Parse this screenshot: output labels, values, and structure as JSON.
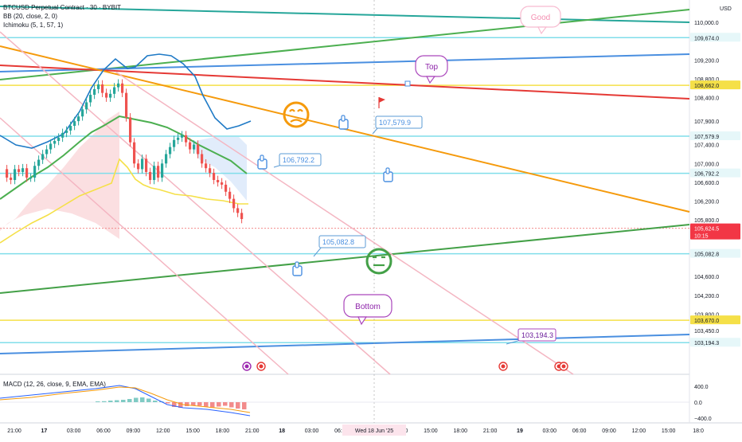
{
  "header": {
    "title": "BTCUSD Perpetual Contract · 30 · BYBIT",
    "indicators": [
      "BB (20, close, 2, 0)",
      "Ichimoku (5, 1, 57, 1)"
    ],
    "currency": "USD"
  },
  "macd_legend": "MACD (12, 26, close, 9, EMA, EMA)",
  "chart_data": [
    {
      "type": "line",
      "title": "BTCUSD Perpetual Contract · 30 · BYBIT",
      "y_unit": "USD",
      "ylim": [
        102770,
        111050
      ],
      "y_ticks": [
        110000,
        109200,
        108800,
        108400,
        107900,
        107400,
        107000,
        106600,
        106200,
        105800,
        104600,
        104200,
        103800,
        103450
      ],
      "x_ticks": [
        "21:00",
        "17",
        "03:00",
        "06:00",
        "09:00",
        "12:00",
        "15:00",
        "18:00",
        "21:00",
        "18",
        "03:00",
        "06:00",
        "09:00",
        "12:00",
        "15:00",
        "18:00",
        "21:00",
        "19",
        "03:00",
        "06:00",
        "09:00",
        "12:00",
        "15:00",
        "18:0"
      ],
      "crosshair_x_label": "Wed 18 Jun '25",
      "price_labels": [
        {
          "value": "109,674.0",
          "style": "cyan"
        },
        {
          "value": "108,662.0",
          "style": "yellow"
        },
        {
          "value": "107,579.9",
          "style": "cyan"
        },
        {
          "value": "106,792.2",
          "style": "cyan"
        },
        {
          "value": "105,624.5",
          "style": "last",
          "countdown": "10:15"
        },
        {
          "value": "105,082.8",
          "style": "cyan"
        },
        {
          "value": "103,670.0",
          "style": "yellow"
        },
        {
          "value": "103,194.3",
          "style": "cyan"
        }
      ],
      "annotations": {
        "callouts": [
          "107,579.9",
          "106,792.2",
          "105,082.8",
          "103,194.3"
        ],
        "bubbles": [
          "Good",
          "Top",
          "Bottom"
        ]
      },
      "horizontal_levels": [
        109674.0,
        108662.0,
        107579.9,
        106792.2,
        105082.8,
        103670.0,
        103194.3
      ],
      "last_price": 105624.5,
      "candles_approx": [
        106880,
        106700,
        106650,
        106880,
        106820,
        106900,
        106700,
        106700,
        106950,
        107080,
        107200,
        107300,
        107420,
        107480,
        107550,
        107650,
        107700,
        107800,
        107900,
        108000,
        108150,
        108300,
        108460,
        108580,
        108680,
        108500,
        108400,
        108480,
        108620,
        108700,
        108500,
        107980,
        107450,
        107000,
        106880,
        107100,
        106820,
        106650,
        106950,
        106700,
        107000,
        107200,
        107350,
        107500,
        107550,
        107600,
        107450,
        107300,
        107400,
        107200,
        107000,
        106900,
        106800,
        106650,
        106600,
        106550,
        106400,
        106250,
        106050,
        105950,
        105820
      ]
    },
    {
      "type": "bar",
      "title": "MACD (12, 26, close, 9, EMA, EMA)",
      "ylim": [
        -400,
        400
      ],
      "y_ticks": [
        "400.0",
        "0.0",
        "−400.0"
      ]
    }
  ]
}
